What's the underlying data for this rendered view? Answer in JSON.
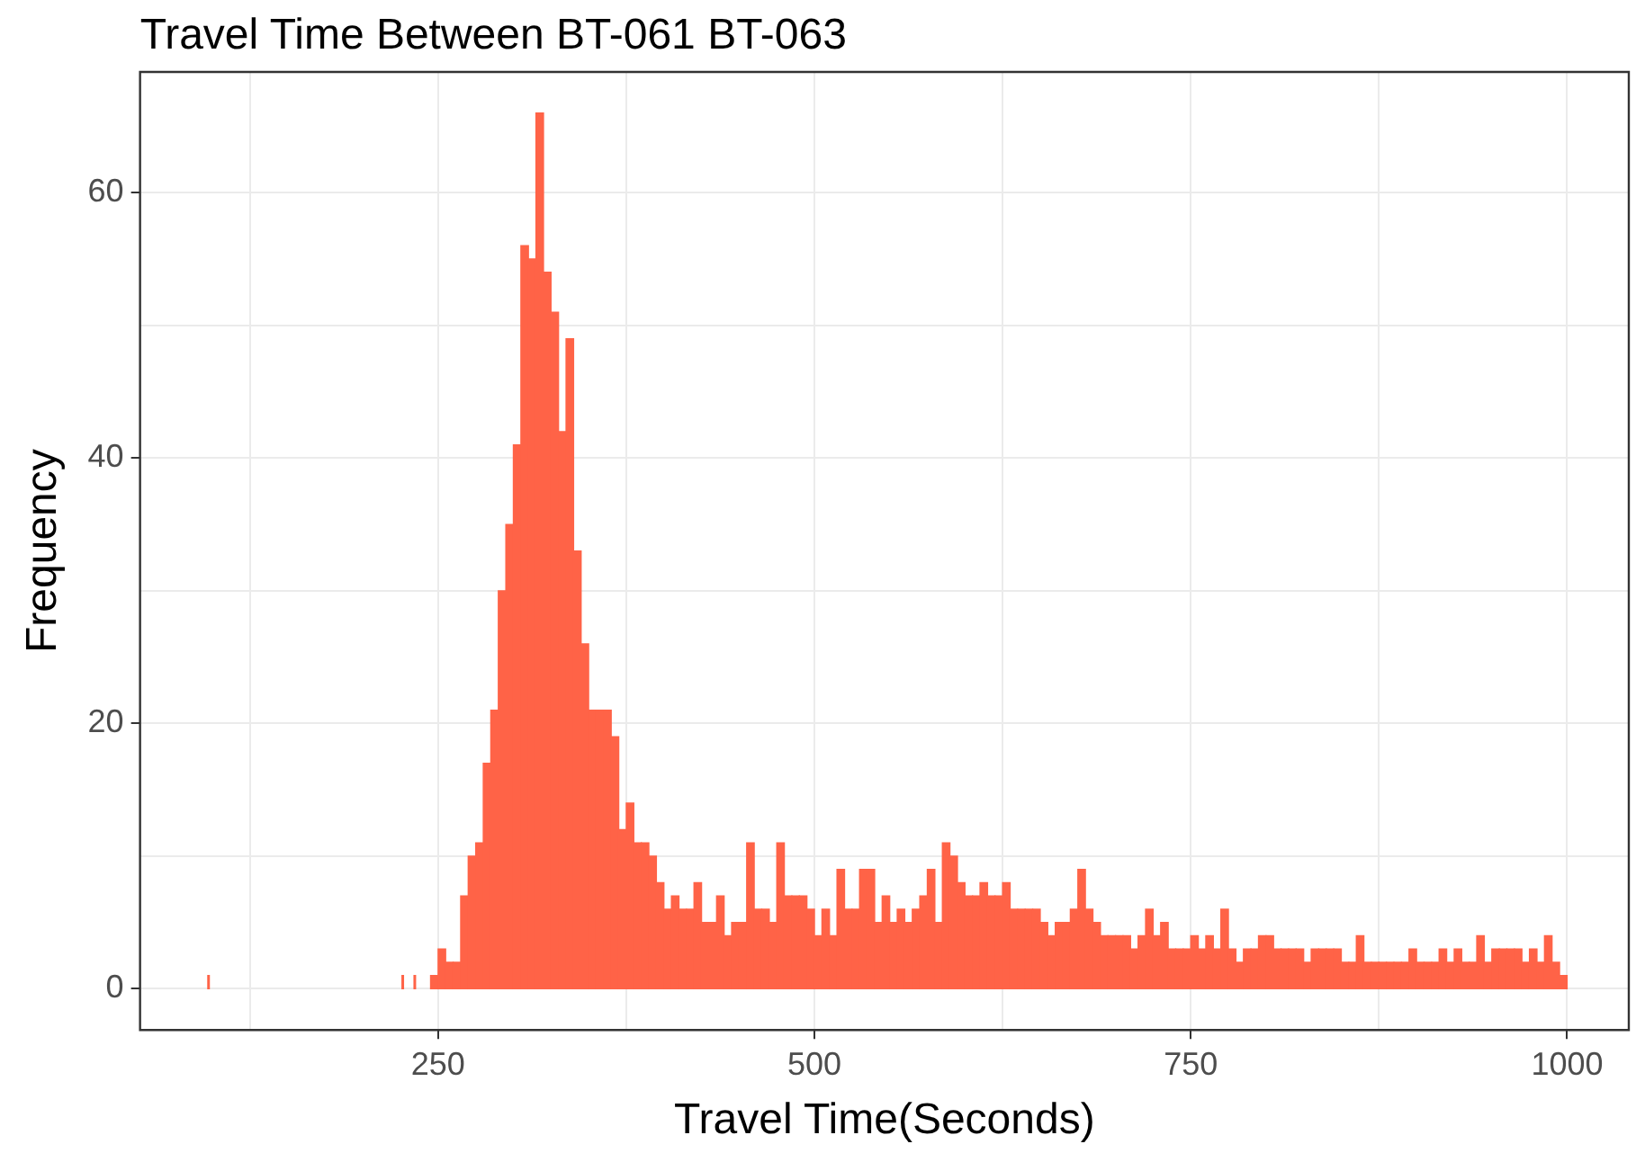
{
  "chart_data": {
    "type": "histogram",
    "title": "Travel Time Between BT-061 BT-063",
    "xlabel": "Travel Time(Seconds)",
    "ylabel": "Frequency",
    "bins": [
      97,
      98,
      226,
      227,
      234,
      235,
      245,
      250,
      255,
      260,
      265,
      270,
      275,
      280,
      285,
      290,
      295,
      300,
      305,
      310,
      315,
      320,
      325,
      330,
      335,
      340,
      345,
      350,
      355,
      360,
      365,
      370,
      375,
      380,
      385,
      390,
      395,
      400,
      405,
      410,
      415,
      420,
      425,
      430,
      435,
      440,
      445,
      450,
      455,
      460,
      465,
      470,
      475,
      480,
      485,
      490,
      495,
      500,
      505,
      510,
      515,
      520,
      525,
      530,
      535,
      540,
      545,
      550,
      555,
      560,
      565,
      570,
      575,
      580,
      585,
      590,
      595,
      600,
      605,
      610,
      615,
      620,
      625,
      630,
      635,
      640,
      645,
      650,
      655,
      660,
      665,
      670,
      675,
      680,
      685,
      690,
      695,
      700,
      705,
      710,
      715,
      720,
      725,
      730,
      735,
      740,
      745,
      750,
      755,
      760,
      765,
      770,
      775,
      780,
      785,
      790,
      795,
      800,
      805,
      810,
      815,
      820,
      825,
      830,
      835,
      840,
      845,
      850,
      855,
      860,
      865,
      870,
      875,
      880,
      885,
      890,
      895,
      900,
      905,
      910,
      915,
      920,
      925,
      930,
      935,
      940,
      945,
      950,
      955,
      960,
      965,
      970,
      975,
      980,
      985,
      990,
      995,
      1000
    ],
    "values": [
      1,
      0,
      1,
      0,
      1,
      0,
      1,
      3,
      2,
      2,
      7,
      10,
      11,
      17,
      21,
      30,
      35,
      41,
      56,
      55,
      66,
      54,
      51,
      42,
      49,
      33,
      26,
      21,
      21,
      21,
      19,
      12,
      14,
      11,
      11,
      10,
      8,
      6,
      7,
      6,
      6,
      8,
      5,
      5,
      7,
      4,
      5,
      5,
      11,
      6,
      6,
      5,
      11,
      7,
      7,
      7,
      6,
      4,
      6,
      4,
      9,
      6,
      6,
      9,
      9,
      5,
      7,
      5,
      6,
      5,
      6,
      7,
      9,
      5,
      11,
      10,
      8,
      7,
      7,
      8,
      7,
      7,
      8,
      6,
      6,
      6,
      6,
      5,
      4,
      5,
      5,
      6,
      9,
      6,
      5,
      4,
      4,
      4,
      4,
      3,
      4,
      6,
      4,
      5,
      3,
      3,
      3,
      4,
      3,
      4,
      3,
      6,
      3,
      2,
      3,
      3,
      4,
      4,
      3,
      3,
      3,
      3,
      2,
      3,
      3,
      3,
      3,
      2,
      2,
      4,
      2,
      2,
      2,
      2,
      2,
      2,
      3,
      2,
      2,
      2,
      3,
      2,
      3,
      2,
      2,
      4,
      2,
      3,
      3,
      3,
      3,
      2,
      3,
      2,
      4,
      2,
      1
    ],
    "color": "#ff6347",
    "xlim": [
      52,
      1041
    ],
    "ylim": [
      -3.1,
      69.1
    ],
    "xticks": [
      {
        "value": 125,
        "label": null
      },
      250,
      {
        "value": 375,
        "label": null
      },
      500,
      {
        "value": 625,
        "label": null
      },
      750,
      {
        "value": 875,
        "label": null
      },
      1000
    ],
    "yticks": [
      0,
      {
        "value": 10,
        "label": null
      },
      20,
      {
        "value": 30,
        "label": null
      },
      40,
      {
        "value": 50,
        "label": null
      },
      60
    ],
    "grid": true,
    "legend": false
  }
}
